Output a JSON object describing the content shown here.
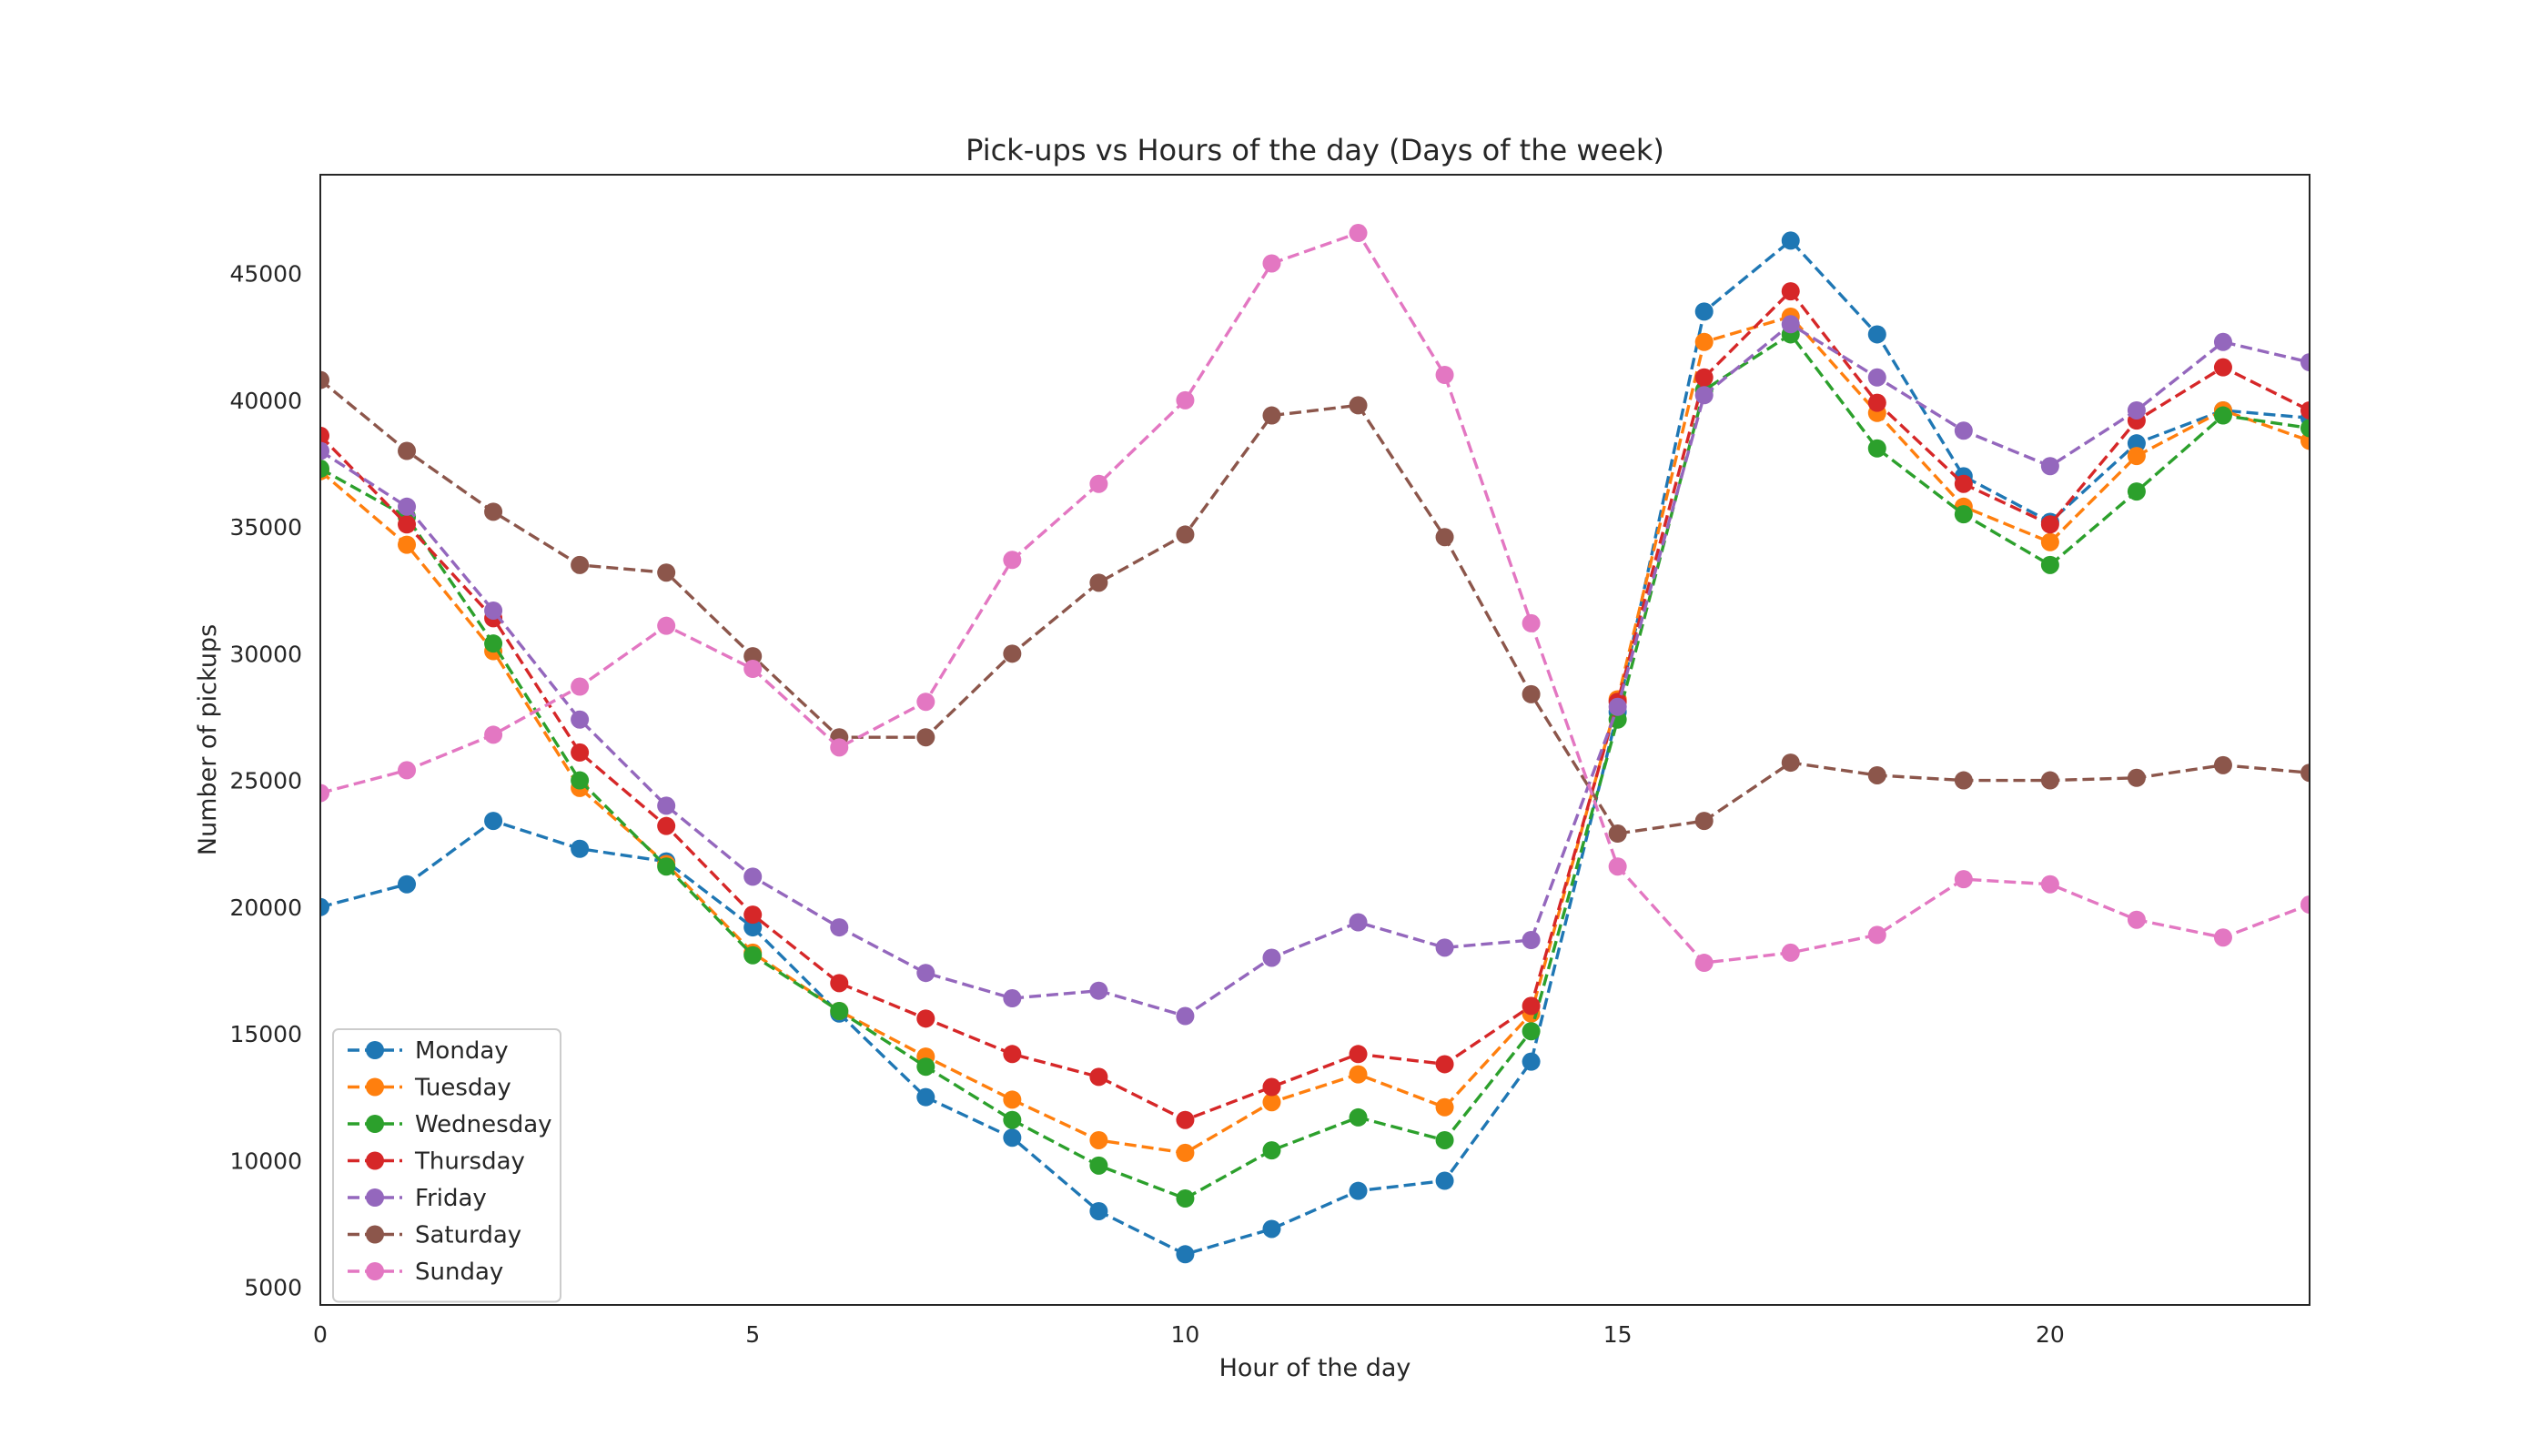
{
  "chart_data": {
    "type": "line",
    "title": "Pick-ups vs Hours of the day (Days of the week)",
    "xlabel": "Hour of the day",
    "ylabel": "Number of pickups",
    "xlim": [
      0,
      23
    ],
    "ylim": [
      4300,
      48900
    ],
    "xticks": [
      0,
      5,
      10,
      15,
      20
    ],
    "yticks": [
      5000,
      10000,
      15000,
      20000,
      25000,
      30000,
      35000,
      40000,
      45000
    ],
    "grid": false,
    "legend_position": "lower-left",
    "line_style": "dashed",
    "marker": "circle",
    "x": [
      0,
      1,
      2,
      3,
      4,
      5,
      6,
      7,
      8,
      9,
      10,
      11,
      12,
      13,
      14,
      15,
      16,
      17,
      18,
      19,
      20,
      21,
      22,
      23
    ],
    "series": [
      {
        "name": "Monday",
        "color": "#1f77b4",
        "values": [
          20000,
          20900,
          23400,
          22300,
          21800,
          19200,
          15800,
          12500,
          10900,
          8000,
          6300,
          7300,
          8800,
          9200,
          13900,
          27700,
          43500,
          46300,
          42600,
          37000,
          35200,
          38300,
          39600,
          39300
        ]
      },
      {
        "name": "Tuesday",
        "color": "#ff7f0e",
        "values": [
          37200,
          34300,
          30100,
          24700,
          21700,
          18200,
          15900,
          14100,
          12400,
          10800,
          10300,
          12300,
          13400,
          12100,
          15800,
          28200,
          42300,
          43300,
          39500,
          35800,
          34400,
          37800,
          39600,
          38400
        ]
      },
      {
        "name": "Wednesday",
        "color": "#2ca02c",
        "values": [
          37300,
          35400,
          30400,
          25000,
          21600,
          18100,
          15900,
          13700,
          11600,
          9800,
          8500,
          10400,
          11700,
          10800,
          15100,
          27400,
          40400,
          42600,
          38100,
          35500,
          33500,
          36400,
          39400,
          38900
        ]
      },
      {
        "name": "Thursday",
        "color": "#d62728",
        "values": [
          38600,
          35100,
          31400,
          26100,
          23200,
          19700,
          17000,
          15600,
          14200,
          13300,
          11600,
          12900,
          14200,
          13800,
          16100,
          28100,
          40900,
          44300,
          39900,
          36700,
          35100,
          39200,
          41300,
          39600
        ]
      },
      {
        "name": "Friday",
        "color": "#9467bd",
        "values": [
          38000,
          35800,
          31700,
          27400,
          24000,
          21200,
          19200,
          17400,
          16400,
          16700,
          15700,
          18000,
          19400,
          18400,
          18700,
          27900,
          40200,
          43000,
          40900,
          38800,
          37400,
          39600,
          42300,
          41500
        ]
      },
      {
        "name": "Saturday",
        "color": "#8c564b",
        "values": [
          40800,
          38000,
          35600,
          33500,
          33200,
          29900,
          26700,
          26700,
          30000,
          32800,
          34700,
          39400,
          39800,
          34600,
          28400,
          22900,
          23400,
          25700,
          25200,
          25000,
          25000,
          25100,
          25600,
          25300
        ]
      },
      {
        "name": "Sunday",
        "color": "#e377c2",
        "values": [
          24500,
          25400,
          26800,
          28700,
          31100,
          29400,
          26300,
          28100,
          33700,
          36700,
          40000,
          45400,
          46600,
          41000,
          31200,
          21600,
          17800,
          18200,
          18900,
          21100,
          20900,
          19500,
          18800,
          20100
        ]
      }
    ]
  }
}
